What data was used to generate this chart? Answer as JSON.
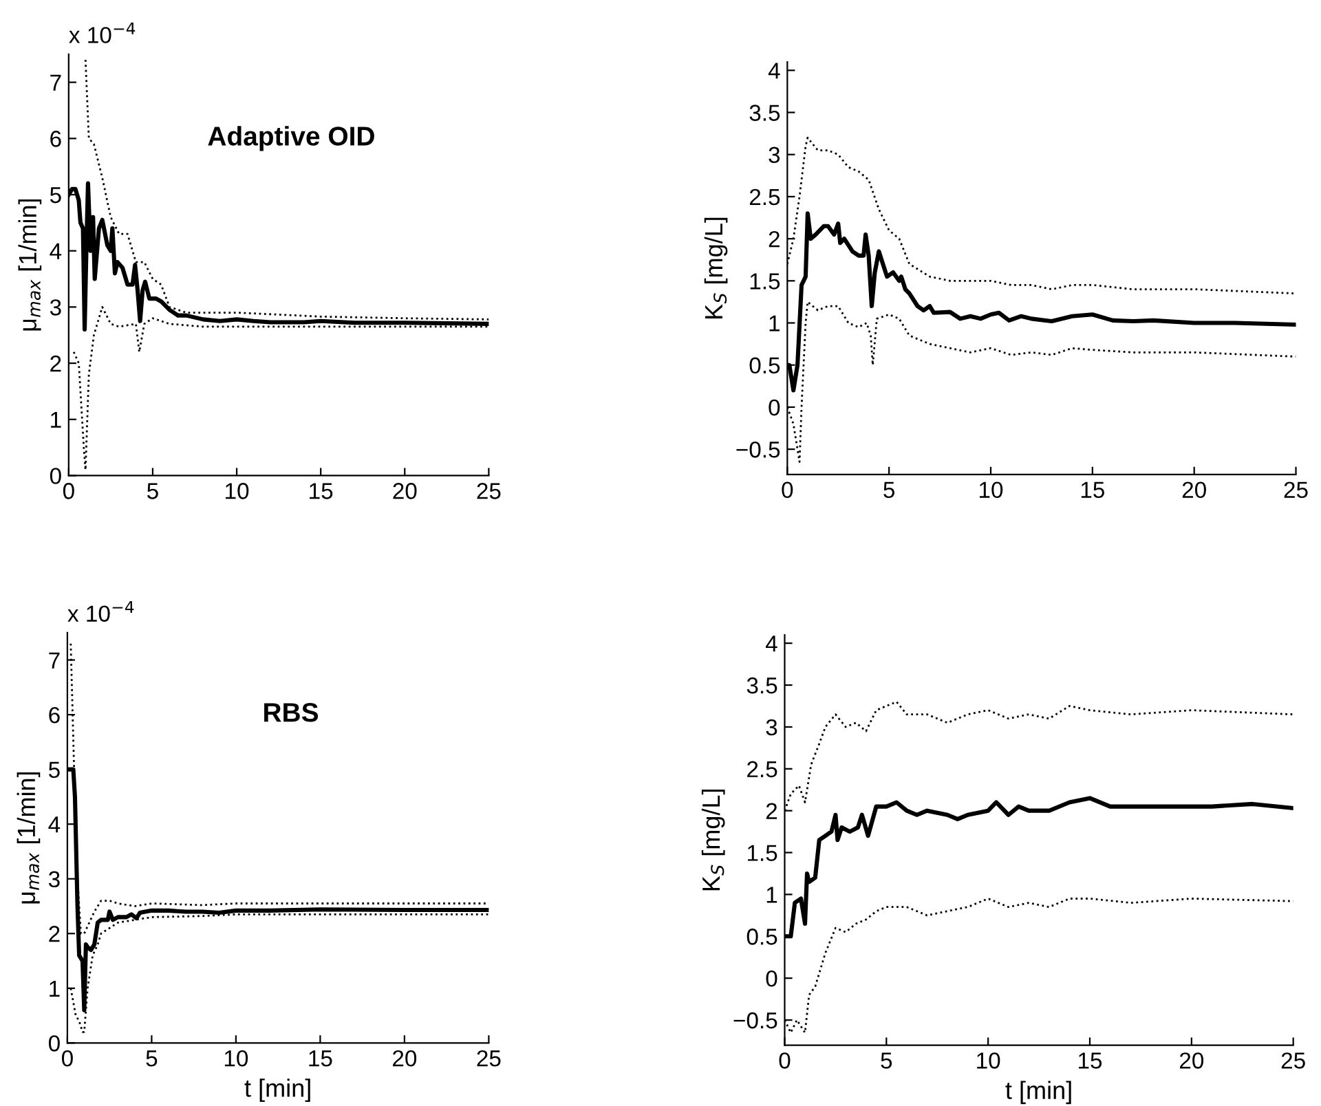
{
  "chart_data": [
    {
      "type": "line",
      "ylabel": "μ$_{max}$ [1/min]",
      "annotations": [
        "x 10$^{−4}$",
        "Adaptive OID"
      ],
      "xlim": [
        0,
        25
      ],
      "xticks": [
        0,
        5,
        10,
        15,
        20,
        25
      ],
      "ylim": [
        0,
        7.5
      ],
      "yticks": [
        0,
        1,
        2,
        3,
        4,
        5,
        6,
        7
      ],
      "grid": false,
      "marker": "none",
      "series": [
        {
          "color": "#000000",
          "line_style": "solid",
          "x": [
            0,
            0.2,
            0.4,
            0.6,
            0.7,
            0.85,
            0.95,
            1.05,
            1.15,
            1.3,
            1.45,
            1.55,
            1.8,
            2.0,
            2.3,
            2.5,
            2.6,
            2.75,
            2.9,
            3.2,
            3.5,
            3.8,
            3.95,
            4.1,
            4.25,
            4.4,
            4.55,
            4.8,
            5.2,
            5.5,
            6,
            6.5,
            7,
            8,
            9,
            10,
            11,
            12,
            14,
            15,
            17,
            20,
            25
          ],
          "values": [
            5.0,
            5.1,
            5.1,
            4.9,
            4.5,
            4.4,
            2.6,
            4.0,
            5.2,
            4.0,
            4.6,
            3.5,
            4.4,
            4.55,
            4.1,
            4.0,
            4.4,
            3.6,
            3.8,
            3.7,
            3.4,
            3.4,
            3.75,
            3.3,
            2.75,
            3.3,
            3.45,
            3.15,
            3.15,
            3.1,
            2.95,
            2.85,
            2.85,
            2.78,
            2.75,
            2.78,
            2.75,
            2.73,
            2.73,
            2.75,
            2.72,
            2.72,
            2.7
          ]
        },
        {
          "color": "#000000",
          "line_style": "dotted",
          "x": [
            1.0,
            1.2,
            1.5,
            2.0,
            2.5,
            3.0,
            3.5,
            4.0,
            4.5,
            5.0,
            5.5,
            6.0,
            7,
            8,
            10,
            15,
            20,
            25
          ],
          "values": [
            7.4,
            6.0,
            5.9,
            5.3,
            4.6,
            4.3,
            4.3,
            3.8,
            3.8,
            3.5,
            3.4,
            3.0,
            2.9,
            2.9,
            2.9,
            2.83,
            2.8,
            2.78
          ]
        },
        {
          "color": "#000000",
          "line_style": "dotted",
          "x": [
            0.3,
            0.6,
            0.9,
            1.0,
            1.2,
            1.5,
            2.0,
            2.5,
            3,
            4,
            4.2,
            4.5,
            5,
            6,
            8,
            10,
            15,
            20,
            25
          ],
          "values": [
            2.2,
            2.0,
            0.5,
            0.1,
            1.8,
            2.5,
            3.0,
            2.7,
            2.65,
            2.7,
            2.2,
            2.7,
            2.8,
            2.7,
            2.65,
            2.65,
            2.65,
            2.65,
            2.65
          ]
        }
      ]
    },
    {
      "type": "line",
      "ylabel": "K$_{S}$ [mg/L]",
      "xlim": [
        0,
        25
      ],
      "xticks": [
        0,
        5,
        10,
        15,
        20,
        25
      ],
      "ylim": [
        -0.8,
        4.1
      ],
      "yticks": [
        {
          "value": -0.5,
          "label": "−0.5"
        },
        0,
        0.5,
        1,
        1.5,
        2,
        2.5,
        3,
        3.5,
        4
      ],
      "grid": false,
      "marker": "none",
      "series": [
        {
          "color": "#000000",
          "line_style": "solid",
          "x": [
            0,
            0.1,
            0.3,
            0.5,
            0.7,
            0.8,
            0.9,
            1.0,
            1.15,
            1.4,
            1.8,
            2.0,
            2.3,
            2.5,
            2.6,
            2.8,
            3.2,
            3.5,
            3.75,
            3.85,
            4.0,
            4.15,
            4.3,
            4.5,
            4.7,
            4.9,
            5.2,
            5.5,
            5.6,
            5.8,
            6,
            6.4,
            6.7,
            7,
            7.2,
            8,
            8.5,
            9,
            9.5,
            10,
            10.4,
            10.9,
            11.5,
            12,
            13,
            14,
            15,
            16,
            17,
            18,
            20,
            22,
            25
          ],
          "values": [
            0.5,
            0.5,
            0.2,
            0.5,
            1.45,
            1.5,
            1.55,
            2.3,
            2.0,
            2.05,
            2.15,
            2.15,
            2.05,
            2.18,
            1.95,
            2.0,
            1.85,
            1.8,
            1.8,
            2.05,
            1.8,
            1.2,
            1.6,
            1.85,
            1.7,
            1.55,
            1.6,
            1.5,
            1.55,
            1.4,
            1.35,
            1.2,
            1.15,
            1.2,
            1.12,
            1.13,
            1.05,
            1.08,
            1.05,
            1.1,
            1.12,
            1.03,
            1.08,
            1.05,
            1.02,
            1.08,
            1.1,
            1.03,
            1.02,
            1.03,
            1.0,
            1.0,
            0.98
          ]
        },
        {
          "color": "#000000",
          "line_style": "dotted",
          "x": [
            0,
            0.3,
            0.6,
            0.9,
            1.0,
            1.5,
            2,
            2.5,
            3,
            3.5,
            4,
            4.5,
            5,
            5.5,
            6,
            7,
            8,
            9,
            10,
            11,
            12,
            13,
            14,
            15,
            17,
            20,
            25
          ],
          "values": [
            1.7,
            2.0,
            2.5,
            3.1,
            3.2,
            3.05,
            3.05,
            3.0,
            2.85,
            2.8,
            2.7,
            2.35,
            2.1,
            2.0,
            1.7,
            1.55,
            1.5,
            1.5,
            1.5,
            1.45,
            1.45,
            1.4,
            1.45,
            1.45,
            1.4,
            1.4,
            1.35
          ]
        },
        {
          "color": "#000000",
          "line_style": "dotted",
          "x": [
            0,
            0.3,
            0.6,
            0.7,
            0.8,
            0.9,
            1.0,
            1.5,
            2,
            2.5,
            3,
            3.5,
            3.9,
            4.1,
            4.2,
            4.4,
            5,
            5.5,
            6,
            7,
            8,
            9,
            10,
            11,
            12,
            13,
            14,
            15,
            17,
            20,
            25
          ],
          "values": [
            0.0,
            -0.2,
            -0.65,
            0.0,
            0.5,
            1.0,
            1.25,
            1.15,
            1.2,
            1.2,
            1.0,
            0.95,
            1.0,
            0.85,
            0.5,
            1.05,
            1.1,
            1.05,
            0.85,
            0.75,
            0.7,
            0.65,
            0.7,
            0.62,
            0.65,
            0.62,
            0.7,
            0.68,
            0.65,
            0.65,
            0.6
          ]
        }
      ]
    },
    {
      "type": "line",
      "xlabel": "t [min]",
      "ylabel": "μ$_{max}$ [1/min]",
      "annotations": [
        "x 10$^{−4}$",
        "RBS"
      ],
      "xlim": [
        0,
        25
      ],
      "xticks": [
        0,
        5,
        10,
        15,
        20,
        25
      ],
      "ylim": [
        0,
        7.5
      ],
      "yticks": [
        0,
        1,
        2,
        3,
        4,
        5,
        6,
        7
      ],
      "grid": false,
      "marker": "none",
      "series": [
        {
          "color": "#000000",
          "line_style": "solid",
          "x": [
            0,
            0.35,
            0.45,
            0.6,
            0.7,
            0.9,
            1.0,
            1.1,
            1.2,
            1.4,
            1.6,
            1.8,
            2.0,
            2.4,
            2.5,
            2.7,
            3.0,
            3.5,
            3.8,
            4.1,
            4.3,
            5,
            6,
            7,
            8,
            9,
            10,
            12,
            15,
            20,
            25
          ],
          "values": [
            5.0,
            5.0,
            4.5,
            2.5,
            1.6,
            1.5,
            0.6,
            1.8,
            1.75,
            1.7,
            1.8,
            2.2,
            2.25,
            2.25,
            2.4,
            2.25,
            2.3,
            2.3,
            2.35,
            2.28,
            2.38,
            2.42,
            2.42,
            2.4,
            2.4,
            2.38,
            2.42,
            2.42,
            2.44,
            2.43,
            2.43
          ]
        },
        {
          "color": "#000000",
          "line_style": "dotted",
          "x": [
            0.2,
            0.4,
            0.6,
            0.8,
            1.0,
            1.3,
            1.6,
            2.0,
            2.5,
            3,
            4,
            5,
            8,
            10,
            15,
            20,
            25
          ],
          "values": [
            7.3,
            5.0,
            3.0,
            2.0,
            2.0,
            2.2,
            2.4,
            2.6,
            2.6,
            2.55,
            2.5,
            2.55,
            2.52,
            2.55,
            2.55,
            2.55,
            2.55
          ]
        },
        {
          "color": "#000000",
          "line_style": "dotted",
          "x": [
            0.2,
            0.5,
            0.7,
            0.9,
            1.0,
            1.2,
            1.5,
            1.8,
            2.0,
            2.5,
            3,
            4,
            5,
            8,
            10,
            15,
            20,
            25
          ],
          "values": [
            1.0,
            0.5,
            0.4,
            0.2,
            0.2,
            1.0,
            1.6,
            1.8,
            2.0,
            2.1,
            2.2,
            2.25,
            2.3,
            2.32,
            2.35,
            2.35,
            2.35,
            2.35
          ]
        }
      ]
    },
    {
      "type": "line",
      "xlabel": "t [min]",
      "ylabel": "K$_{S}$ [mg/L]",
      "xlim": [
        0,
        25
      ],
      "xticks": [
        0,
        5,
        10,
        15,
        20,
        25
      ],
      "ylim": [
        -0.8,
        4.1
      ],
      "yticks": [
        {
          "value": -0.5,
          "label": "−0.5"
        },
        0,
        0.5,
        1,
        1.5,
        2,
        2.5,
        3,
        3.5,
        4
      ],
      "grid": false,
      "marker": "none",
      "series": [
        {
          "color": "#000000",
          "line_style": "solid",
          "x": [
            0,
            0.3,
            0.5,
            0.8,
            1.0,
            1.1,
            1.2,
            1.5,
            1.7,
            2.0,
            2.3,
            2.5,
            2.6,
            2.8,
            3.2,
            3.6,
            3.8,
            4.1,
            4.5,
            5,
            5.5,
            6,
            6.5,
            7,
            8,
            8.5,
            9,
            10,
            10.4,
            11,
            11.5,
            12,
            13,
            14,
            15,
            16,
            17,
            18,
            20,
            21,
            23,
            25
          ],
          "values": [
            0.5,
            0.5,
            0.9,
            0.95,
            0.65,
            1.25,
            1.15,
            1.2,
            1.65,
            1.7,
            1.75,
            1.95,
            1.65,
            1.8,
            1.75,
            1.8,
            1.95,
            1.7,
            2.05,
            2.05,
            2.1,
            2.0,
            1.95,
            2.0,
            1.95,
            1.9,
            1.95,
            2.0,
            2.1,
            1.95,
            2.05,
            2.0,
            2.0,
            2.1,
            2.15,
            2.05,
            2.05,
            2.05,
            2.05,
            2.05,
            2.08,
            2.03
          ]
        },
        {
          "color": "#000000",
          "line_style": "dotted",
          "x": [
            0,
            0.3,
            0.7,
            1.0,
            1.3,
            1.7,
            2.0,
            2.5,
            3,
            3.5,
            4,
            4.5,
            5.5,
            6,
            7,
            8,
            9,
            10,
            11,
            12,
            13,
            14,
            15,
            17,
            20,
            25
          ],
          "values": [
            2.0,
            2.2,
            2.3,
            2.1,
            2.55,
            2.8,
            3.0,
            3.15,
            3.0,
            3.05,
            2.95,
            3.2,
            3.3,
            3.15,
            3.15,
            3.05,
            3.15,
            3.2,
            3.1,
            3.15,
            3.1,
            3.25,
            3.2,
            3.15,
            3.2,
            3.15
          ]
        },
        {
          "color": "#000000",
          "line_style": "dotted",
          "x": [
            0,
            0.3,
            0.6,
            1.0,
            1.2,
            1.5,
            2.0,
            2.5,
            3,
            3.5,
            4,
            4.5,
            5,
            6,
            7,
            8,
            9,
            10,
            11,
            12,
            13,
            14,
            15,
            17,
            20,
            25
          ],
          "values": [
            -0.5,
            -0.65,
            -0.5,
            -0.65,
            -0.2,
            -0.1,
            0.3,
            0.6,
            0.55,
            0.65,
            0.7,
            0.8,
            0.85,
            0.85,
            0.75,
            0.8,
            0.85,
            0.95,
            0.85,
            0.9,
            0.85,
            0.95,
            0.95,
            0.9,
            0.95,
            0.92
          ]
        }
      ]
    }
  ]
}
